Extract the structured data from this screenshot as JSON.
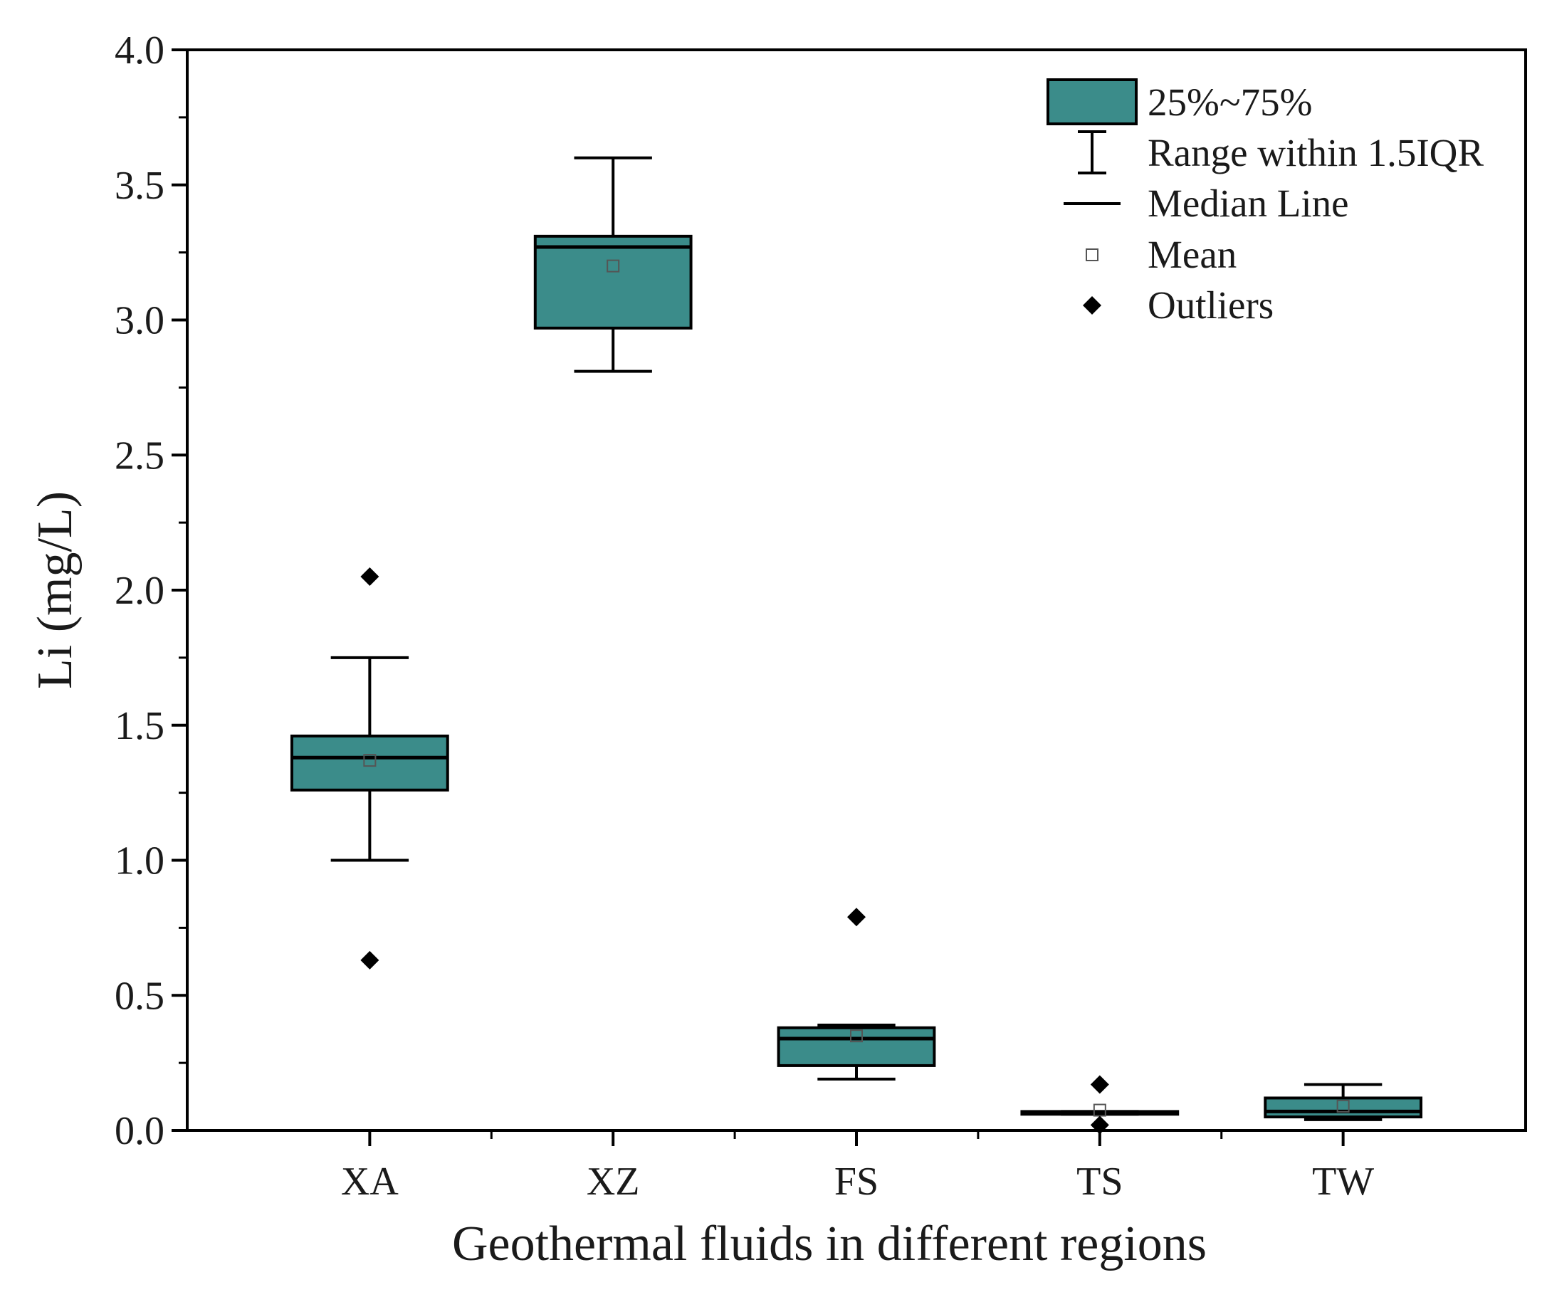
{
  "chart_data": {
    "type": "box",
    "title": "",
    "xlabel": "Geothermal fluids in different regions",
    "ylabel": "Li (mg/L)",
    "ylim": [
      0,
      4
    ],
    "yticks": [
      "0.0",
      "0.5",
      "1.0",
      "1.5",
      "2.0",
      "2.5",
      "3.0",
      "3.5",
      "4.0"
    ],
    "box_color": "#3b8c8a",
    "categories": [
      "XA",
      "XZ",
      "FS",
      "TS",
      "TW"
    ],
    "series": [
      {
        "name": "XA",
        "q1": 1.26,
        "median": 1.38,
        "q3": 1.46,
        "whisker_low": 1.0,
        "whisker_high": 1.75,
        "mean": 1.37,
        "outliers": [
          2.05,
          0.63
        ]
      },
      {
        "name": "XZ",
        "q1": 2.97,
        "median": 3.27,
        "q3": 3.31,
        "whisker_low": 2.81,
        "whisker_high": 3.6,
        "mean": 3.2,
        "outliers": []
      },
      {
        "name": "FS",
        "q1": 0.24,
        "median": 0.34,
        "q3": 0.38,
        "whisker_low": 0.19,
        "whisker_high": 0.39,
        "mean": 0.35,
        "outliers": [
          0.79
        ]
      },
      {
        "name": "TS",
        "q1": 0.06,
        "median": 0.065,
        "q3": 0.07,
        "whisker_low": 0.06,
        "whisker_high": 0.07,
        "mean": 0.075,
        "outliers": [
          0.17,
          0.02
        ]
      },
      {
        "name": "TW",
        "q1": 0.05,
        "median": 0.07,
        "q3": 0.12,
        "whisker_low": 0.04,
        "whisker_high": 0.17,
        "mean": 0.09,
        "outliers": []
      }
    ],
    "legend": {
      "position": "top-right",
      "items": [
        "25%~75%",
        "Range within 1.5IQR",
        "Median Line",
        "Mean",
        "Outliers"
      ]
    }
  }
}
